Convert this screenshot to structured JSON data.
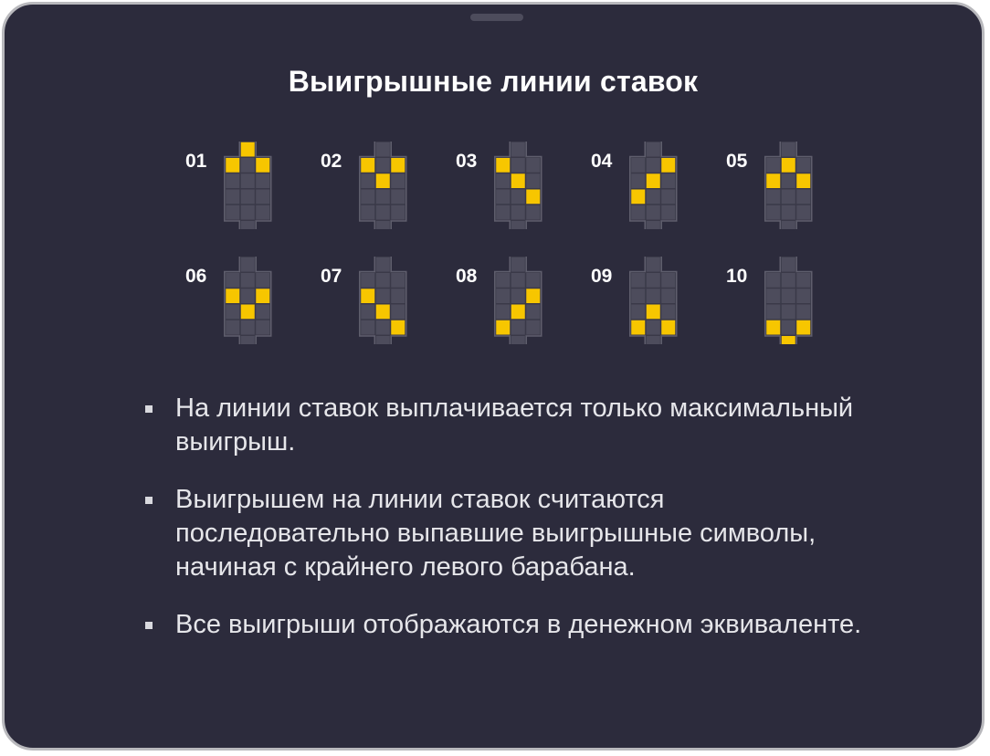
{
  "dialog": {
    "title": "Выигрышные линии ставок"
  },
  "colors": {
    "background": "#2c2b3c",
    "cell_empty": "#4d4c5c",
    "cell_border": "#5f5e6d",
    "cell_highlight": "#f7c600",
    "frame": "#b9b9bd"
  },
  "paylines": [
    {
      "number": "01",
      "highlighted_rows": [
        1,
        0,
        1
      ]
    },
    {
      "number": "02",
      "highlighted_rows": [
        1,
        2,
        1
      ]
    },
    {
      "number": "03",
      "highlighted_rows": [
        1,
        2,
        3
      ]
    },
    {
      "number": "04",
      "highlighted_rows": [
        3,
        2,
        1
      ]
    },
    {
      "number": "05",
      "highlighted_rows": [
        2,
        1,
        2
      ]
    },
    {
      "number": "06",
      "highlighted_rows": [
        2,
        3,
        2
      ]
    },
    {
      "number": "07",
      "highlighted_rows": [
        2,
        3,
        4
      ]
    },
    {
      "number": "08",
      "highlighted_rows": [
        4,
        3,
        2
      ]
    },
    {
      "number": "09",
      "highlighted_rows": [
        4,
        3,
        4
      ]
    },
    {
      "number": "10",
      "highlighted_rows": [
        4,
        5,
        4
      ]
    }
  ],
  "rules": [
    "На линии ставок выплачивается только максимальный выигрыш.",
    "Выигрышем на линии ставок считаются последовательно выпавшие выигрышные символы, начиная с крайнего левого барабана.",
    "Все выигрыши отображаются в денежном эквиваленте."
  ]
}
